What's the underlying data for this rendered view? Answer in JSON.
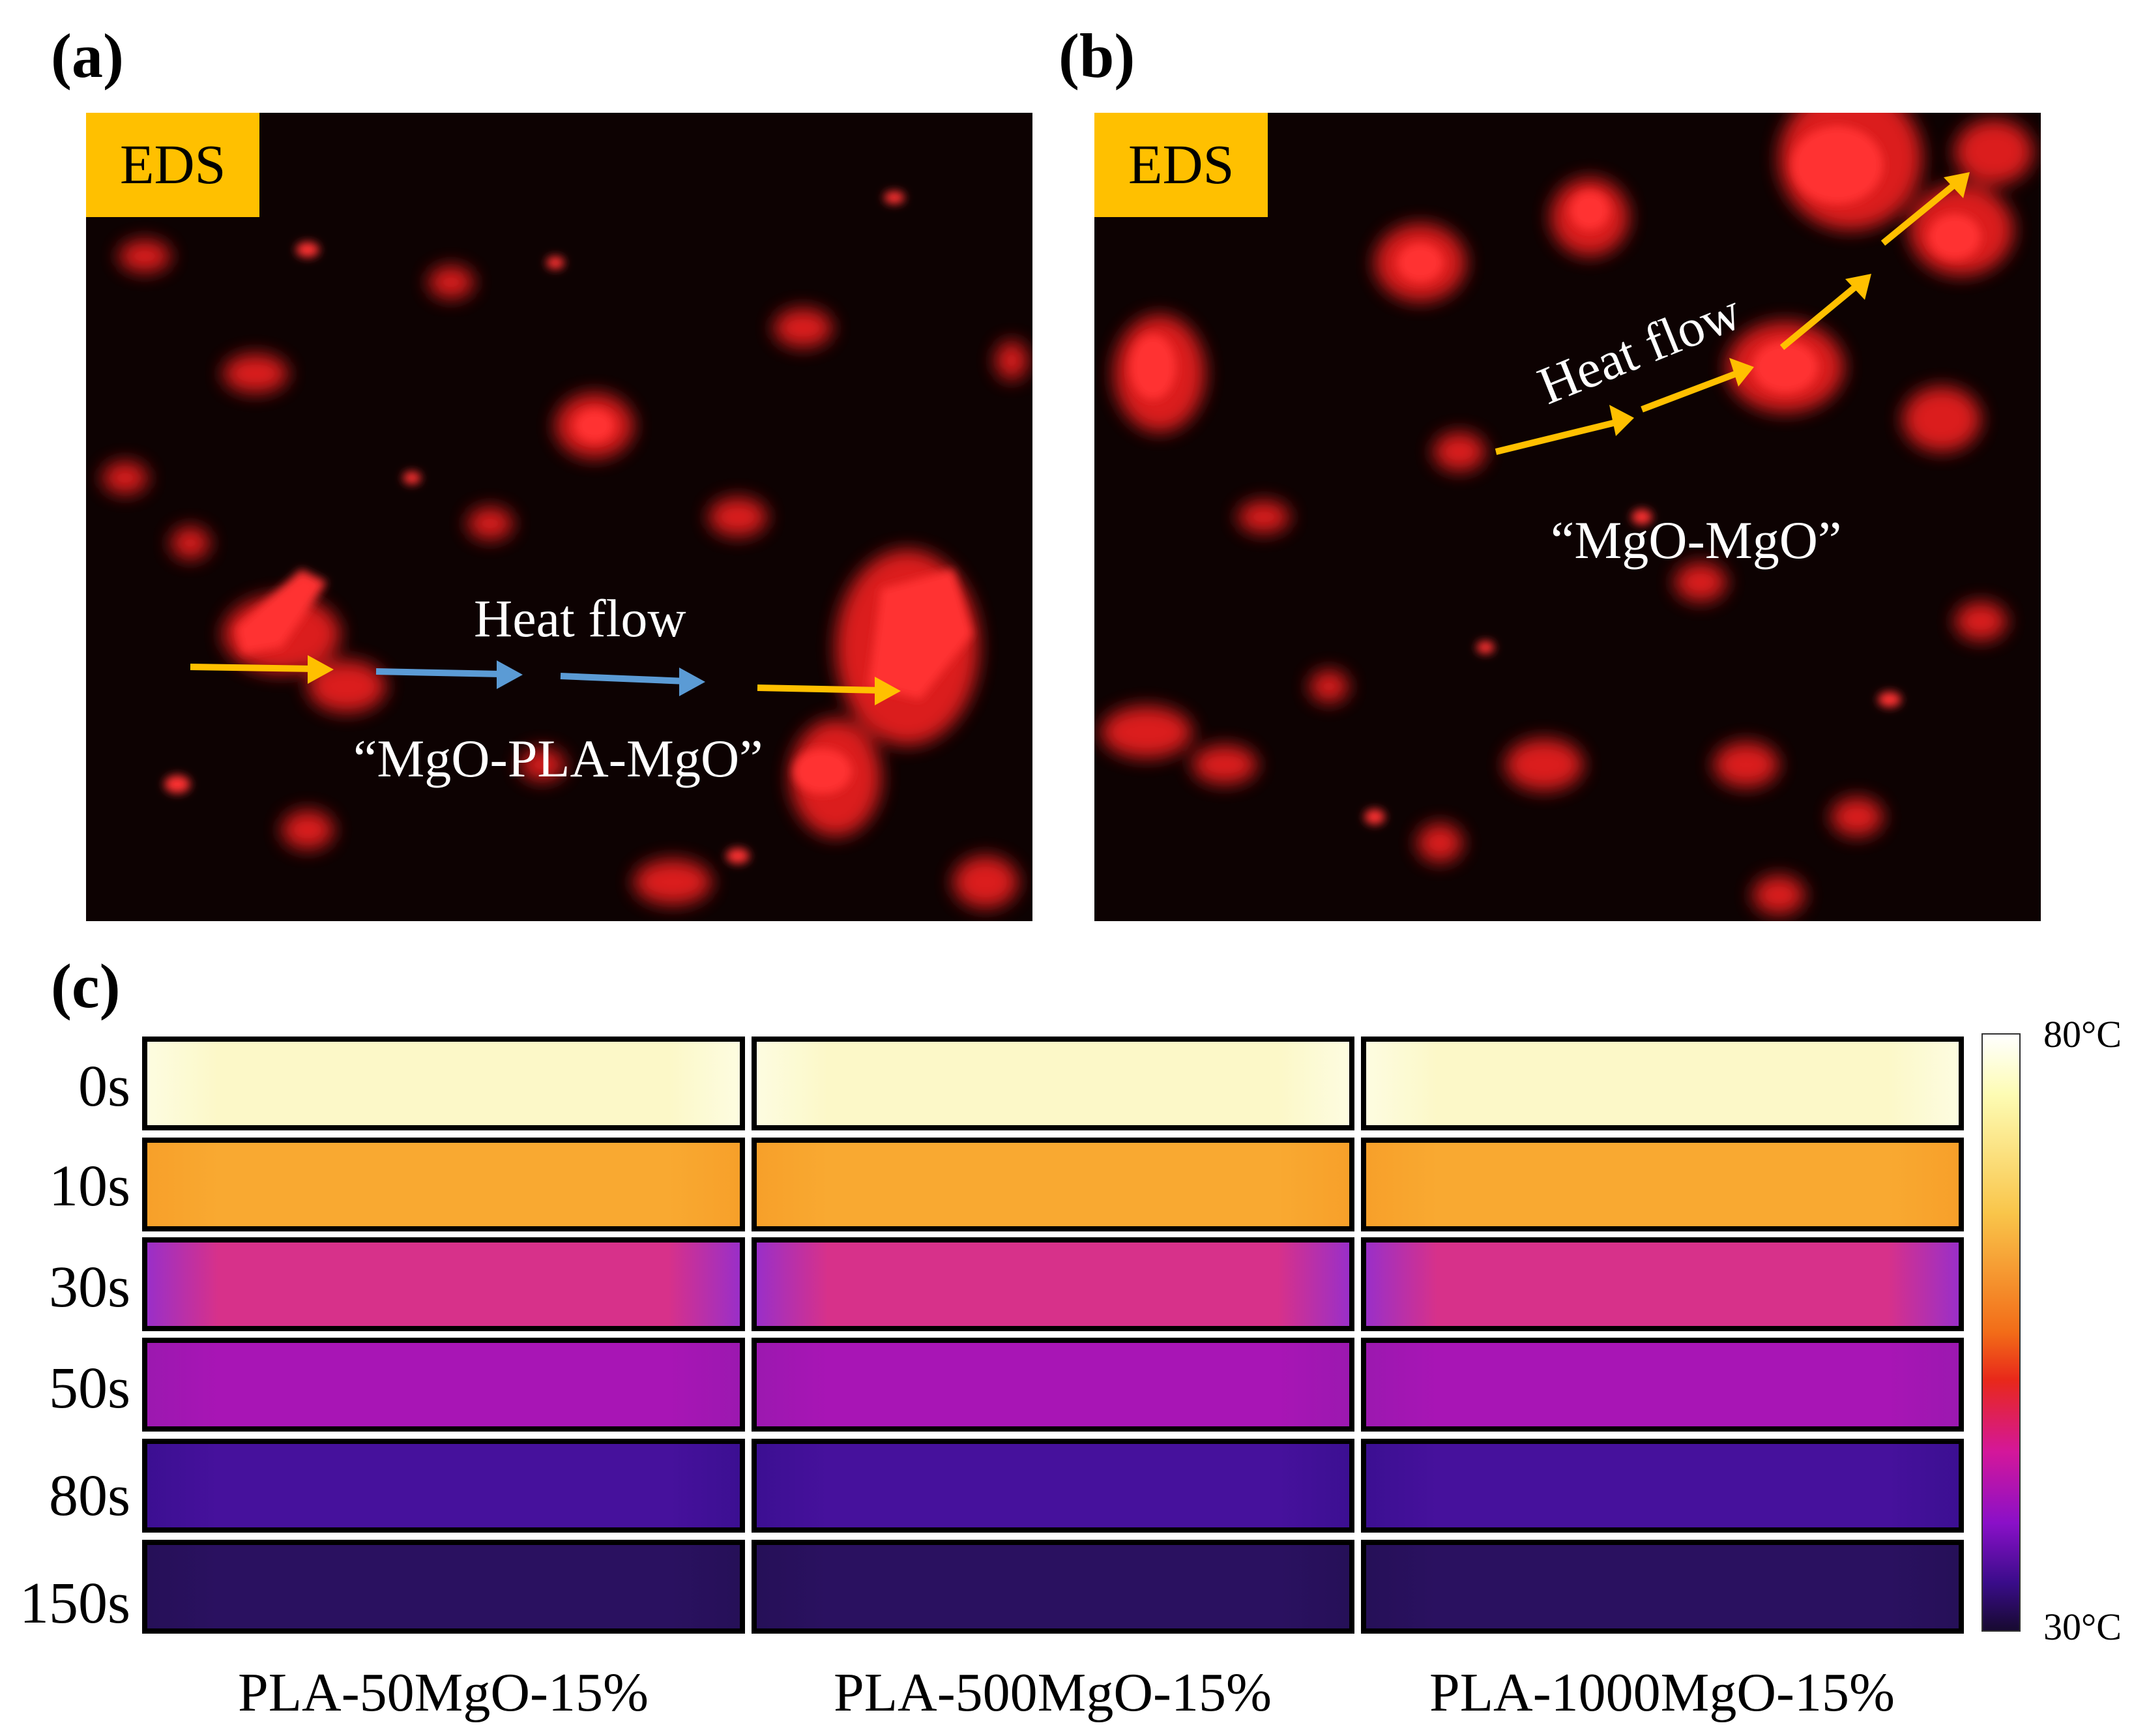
{
  "panel_labels": {
    "a": "(a)",
    "b": "(b)",
    "c": "(c)"
  },
  "panel_a": {
    "tag": "EDS",
    "heat_flow_label": "Heat flow",
    "path_label": "“MgO-PLA-MgO”",
    "colors": {
      "arrow_interface": "#ffc000",
      "arrow_matrix": "#5b9bd5",
      "particle": "#ff2020",
      "background": "#0d0202"
    }
  },
  "panel_b": {
    "tag": "EDS",
    "heat_flow_label": "Heat flow",
    "path_label": "“MgO-MgO”",
    "colors": {
      "arrow": "#ffc000",
      "particle": "#ff2020",
      "background": "#0d0202"
    }
  },
  "panel_c": {
    "time_labels": [
      "0s",
      "10s",
      "30s",
      "50s",
      "80s",
      "150s"
    ],
    "samples": [
      "PLA-50MgO-15%",
      "PLA-500MgO-15%",
      "PLA-1000MgO-15%"
    ],
    "colorbar": {
      "max_label": "80°C",
      "min_label": "30°C"
    },
    "row_colors": [
      "#fcf8c8",
      "#f9a931",
      "#d7318a",
      "#a815b5",
      "#46119c",
      "#2a1160"
    ]
  }
}
